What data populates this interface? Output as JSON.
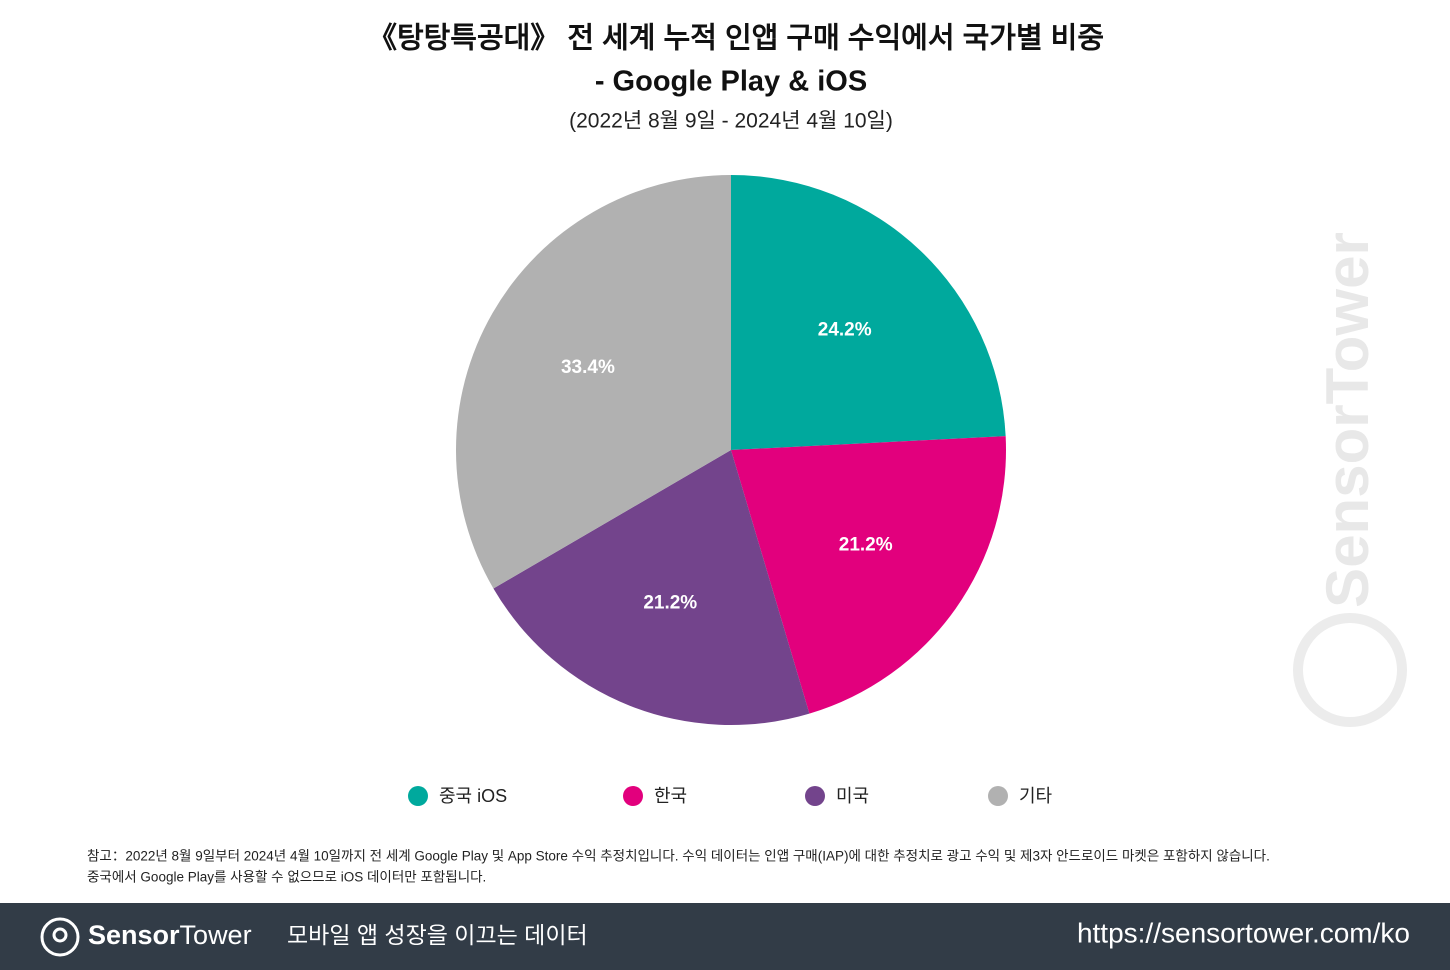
{
  "chart_data": {
    "type": "pie",
    "title": [
      "《탕탕특공대》 전 세계 누적 인앱 구매 수익에서 국가별 비중",
      "- Google Play & iOS"
    ],
    "subtitle": "(2022년 8월 9일 - 2024년 4월 10일)",
    "categories": [
      "중국 iOS",
      "한국",
      "미국",
      "기타"
    ],
    "values": [
      24.2,
      21.2,
      21.2,
      33.4
    ],
    "value_labels": [
      "24.2%",
      "21.2%",
      "21.2%",
      "33.4%"
    ],
    "colors": [
      "#00a99d",
      "#e2007d",
      "#73448c",
      "#b1b1b1"
    ],
    "legend": "bottom",
    "note": [
      "참고：2022년 8월 9일부터 2024년 4월 10일까지 전 세계 Google Play 및 App Store 수익 추정치입니다. 수익 데이터는 인앱 구매(IAP)에 대한 추정치로 광고 수익 및 제3자 안드로이드 마켓은 포함하지 않습니다.",
      "중국에서 Google Play를 사용할 수 없으므로 iOS 데이터만 포함됩니다."
    ],
    "watermark": "SensorTower"
  },
  "footer": {
    "brand": [
      "Sensor",
      "Tower"
    ],
    "tagline": "모바일 앱 성장을 이끄는 데이터",
    "url": "https://sensortower.com/ko"
  }
}
